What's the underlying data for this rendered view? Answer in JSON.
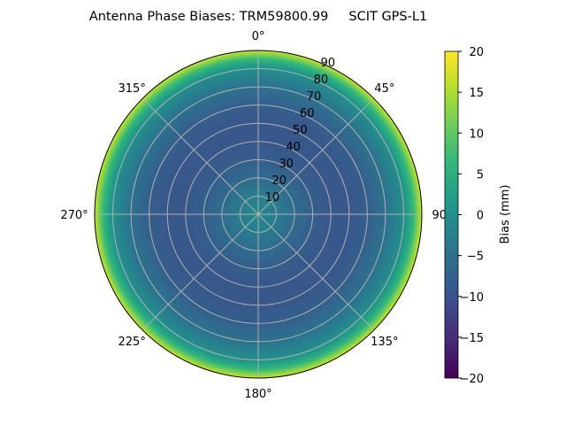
{
  "chart_data": {
    "type": "heatmap",
    "projection": "polar",
    "title": "Antenna Phase Biases: TRM59800.99     SCIT GPS-L1",
    "theta_direction": "clockwise",
    "theta_zero": "top",
    "theta_tick_labels": [
      "0°",
      "45°",
      "90°",
      "135°",
      "180°",
      "225°",
      "270°",
      "315°"
    ],
    "r_tick_labels": [
      "10",
      "20",
      "30",
      "40",
      "50",
      "60",
      "70",
      "80",
      "90"
    ],
    "rlim": [
      0,
      90
    ],
    "grid": true,
    "colormap": "viridis",
    "colorbar": {
      "label": "Bias (mm)",
      "range": [
        -20,
        20
      ],
      "tick_labels": [
        "20",
        "15",
        "10",
        "5",
        "0",
        "−5",
        "−10",
        "−15",
        "−20"
      ]
    },
    "zenith_deg": [
      0,
      10,
      20,
      30,
      40,
      50,
      60,
      70,
      80,
      85,
      90
    ],
    "bias_mm": [
      -1,
      -3,
      -6,
      -8,
      -9,
      -9,
      -8,
      -5,
      0,
      6,
      17
    ]
  }
}
